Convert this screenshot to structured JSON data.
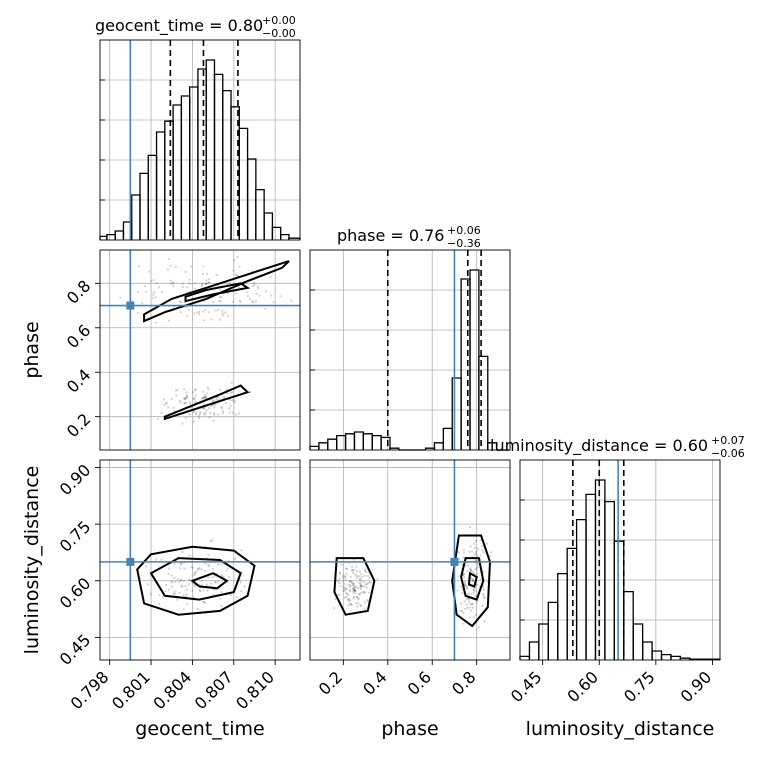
{
  "chart_data": {
    "type": "corner",
    "parameters": [
      "geocent_time",
      "phase",
      "luminosity_distance"
    ],
    "colors": {
      "truth": "#4682b4",
      "histogram": "#000000",
      "quantile": "#000000",
      "grid": "#b0b0b0"
    },
    "truths": {
      "geocent_time": 0.7995,
      "phase": 0.7,
      "luminosity_distance": 0.65
    },
    "titles": [
      {
        "param": "geocent_time",
        "text": "geocent_time = 0.80",
        "plus": "+0.00",
        "minus": "−0.00"
      },
      {
        "param": "phase",
        "text": "phase = 0.76",
        "plus": "+0.06",
        "minus": "−0.36"
      },
      {
        "param": "luminosity_distance",
        "text": "luminosity_distance = 0.60",
        "plus": "+0.07",
        "minus": "−0.06"
      }
    ],
    "axes": {
      "geocent_time": {
        "range": [
          0.7973,
          0.8118
        ],
        "ticks": [
          0.798,
          0.801,
          0.804,
          0.807,
          0.81
        ],
        "tick_labels": [
          "0.798",
          "0.801",
          "0.804",
          "0.807",
          "0.810"
        ],
        "label": "geocent_time"
      },
      "phase": {
        "range": [
          0.05,
          0.95
        ],
        "ticks": [
          0.2,
          0.4,
          0.6,
          0.8
        ],
        "tick_labels": [
          "0.2",
          "0.4",
          "0.6",
          "0.8"
        ],
        "label": "phase"
      },
      "luminosity_distance": {
        "range": [
          0.39,
          0.92
        ],
        "ticks": [
          0.45,
          0.6,
          0.75,
          0.9
        ],
        "tick_labels": [
          "0.45",
          "0.60",
          "0.75",
          "0.90"
        ],
        "label": "luminosity_distance"
      }
    },
    "histograms": {
      "geocent_time": {
        "quantiles": [
          0.8024,
          0.8048,
          0.8073
        ],
        "bins": [
          [
            0.7973,
            0.7978,
            0.02
          ],
          [
            0.7978,
            0.7984,
            0.03
          ],
          [
            0.7984,
            0.799,
            0.05
          ],
          [
            0.799,
            0.7996,
            0.1
          ],
          [
            0.7996,
            0.8002,
            0.25
          ],
          [
            0.8002,
            0.8008,
            0.37
          ],
          [
            0.8008,
            0.8014,
            0.47
          ],
          [
            0.8014,
            0.802,
            0.6
          ],
          [
            0.802,
            0.8026,
            0.66
          ],
          [
            0.8026,
            0.8032,
            0.75
          ],
          [
            0.8032,
            0.8038,
            0.8
          ],
          [
            0.8038,
            0.8044,
            0.85
          ],
          [
            0.8044,
            0.805,
            0.95
          ],
          [
            0.805,
            0.8056,
            1.0
          ],
          [
            0.8056,
            0.8062,
            0.92
          ],
          [
            0.8062,
            0.8068,
            0.83
          ],
          [
            0.8068,
            0.8074,
            0.74
          ],
          [
            0.8074,
            0.808,
            0.62
          ],
          [
            0.808,
            0.8086,
            0.45
          ],
          [
            0.8086,
            0.8092,
            0.28
          ],
          [
            0.8092,
            0.8098,
            0.15
          ],
          [
            0.8098,
            0.8104,
            0.07
          ],
          [
            0.8104,
            0.811,
            0.03
          ],
          [
            0.811,
            0.8118,
            0.01
          ]
        ]
      },
      "phase": {
        "quantiles": [
          0.4,
          0.76,
          0.82
        ],
        "bins": [
          [
            0.05,
            0.09,
            0.02
          ],
          [
            0.09,
            0.13,
            0.04
          ],
          [
            0.13,
            0.17,
            0.06
          ],
          [
            0.17,
            0.21,
            0.08
          ],
          [
            0.21,
            0.25,
            0.09
          ],
          [
            0.25,
            0.29,
            0.1
          ],
          [
            0.29,
            0.33,
            0.09
          ],
          [
            0.33,
            0.37,
            0.08
          ],
          [
            0.37,
            0.41,
            0.07
          ],
          [
            0.41,
            0.45,
            0.01
          ],
          [
            0.45,
            0.49,
            0.0
          ],
          [
            0.49,
            0.53,
            0.0
          ],
          [
            0.53,
            0.57,
            0.0
          ],
          [
            0.57,
            0.61,
            0.01
          ],
          [
            0.61,
            0.65,
            0.04
          ],
          [
            0.65,
            0.69,
            0.12
          ],
          [
            0.69,
            0.73,
            0.4
          ],
          [
            0.73,
            0.77,
            0.95
          ],
          [
            0.77,
            0.81,
            1.0
          ],
          [
            0.81,
            0.85,
            0.52
          ],
          [
            0.85,
            0.89,
            0.04
          ],
          [
            0.89,
            0.95,
            0.0
          ]
        ]
      },
      "luminosity_distance": {
        "quantiles": [
          0.53,
          0.6,
          0.665
        ],
        "bins": [
          [
            0.39,
            0.415,
            0.02
          ],
          [
            0.415,
            0.44,
            0.1
          ],
          [
            0.44,
            0.465,
            0.2
          ],
          [
            0.465,
            0.49,
            0.32
          ],
          [
            0.49,
            0.515,
            0.48
          ],
          [
            0.515,
            0.54,
            0.62
          ],
          [
            0.54,
            0.565,
            0.78
          ],
          [
            0.565,
            0.59,
            0.92
          ],
          [
            0.59,
            0.615,
            1.0
          ],
          [
            0.615,
            0.64,
            0.88
          ],
          [
            0.64,
            0.665,
            0.66
          ],
          [
            0.665,
            0.69,
            0.38
          ],
          [
            0.69,
            0.715,
            0.2
          ],
          [
            0.715,
            0.74,
            0.1
          ],
          [
            0.74,
            0.765,
            0.05
          ],
          [
            0.765,
            0.79,
            0.03
          ],
          [
            0.79,
            0.815,
            0.02
          ],
          [
            0.815,
            0.84,
            0.01
          ],
          [
            0.84,
            0.92,
            0.005
          ]
        ]
      }
    },
    "contours_2d": {
      "phase_vs_geocent_time": [
        {
          "level": "outer",
          "points": [
            [
              0.8005,
              0.66
            ],
            [
              0.8025,
              0.73
            ],
            [
              0.805,
              0.78
            ],
            [
              0.808,
              0.84
            ],
            [
              0.811,
              0.9
            ],
            [
              0.8105,
              0.87
            ],
            [
              0.808,
              0.81
            ],
            [
              0.805,
              0.73
            ],
            [
              0.802,
              0.67
            ],
            [
              0.8005,
              0.63
            ]
          ]
        },
        {
          "level": "inner",
          "points": [
            [
              0.8035,
              0.74
            ],
            [
              0.805,
              0.77
            ],
            [
              0.8075,
              0.8
            ],
            [
              0.808,
              0.78
            ],
            [
              0.8055,
              0.75
            ],
            [
              0.8035,
              0.72
            ]
          ]
        },
        {
          "level": "outer",
          "points": [
            [
              0.802,
              0.2
            ],
            [
              0.804,
              0.25
            ],
            [
              0.806,
              0.3
            ],
            [
              0.8075,
              0.34
            ],
            [
              0.808,
              0.31
            ],
            [
              0.806,
              0.27
            ],
            [
              0.8035,
              0.22
            ],
            [
              0.802,
              0.19
            ]
          ]
        }
      ],
      "luminosity_distance_vs_geocent_time": [
        {
          "level": "outer",
          "points": [
            [
              0.8,
              0.63
            ],
            [
              0.801,
              0.67
            ],
            [
              0.804,
              0.69
            ],
            [
              0.807,
              0.68
            ],
            [
              0.8085,
              0.64
            ],
            [
              0.808,
              0.56
            ],
            [
              0.806,
              0.52
            ],
            [
              0.803,
              0.51
            ],
            [
              0.8005,
              0.54
            ]
          ]
        },
        {
          "level": "mid",
          "points": [
            [
              0.801,
              0.62
            ],
            [
              0.803,
              0.66
            ],
            [
              0.806,
              0.655
            ],
            [
              0.8075,
              0.62
            ],
            [
              0.807,
              0.57
            ],
            [
              0.8045,
              0.55
            ],
            [
              0.802,
              0.56
            ]
          ]
        },
        {
          "level": "inner",
          "points": [
            [
              0.804,
              0.6
            ],
            [
              0.8055,
              0.62
            ],
            [
              0.8065,
              0.6
            ],
            [
              0.8058,
              0.58
            ],
            [
              0.8045,
              0.585
            ]
          ]
        }
      ],
      "luminosity_distance_vs_phase": [
        {
          "level": "outer",
          "points": [
            [
              0.17,
              0.66
            ],
            [
              0.29,
              0.66
            ],
            [
              0.34,
              0.6
            ],
            [
              0.31,
              0.52
            ],
            [
              0.21,
              0.51
            ],
            [
              0.16,
              0.57
            ]
          ]
        },
        {
          "level": "outer",
          "points": [
            [
              0.72,
              0.72
            ],
            [
              0.82,
              0.72
            ],
            [
              0.86,
              0.65
            ],
            [
              0.85,
              0.53
            ],
            [
              0.78,
              0.48
            ],
            [
              0.71,
              0.51
            ],
            [
              0.69,
              0.6
            ]
          ]
        },
        {
          "level": "mid",
          "points": [
            [
              0.75,
              0.66
            ],
            [
              0.81,
              0.66
            ],
            [
              0.83,
              0.6
            ],
            [
              0.8,
              0.55
            ],
            [
              0.75,
              0.56
            ],
            [
              0.73,
              0.61
            ]
          ]
        },
        {
          "level": "inner",
          "points": [
            [
              0.77,
              0.62
            ],
            [
              0.8,
              0.61
            ],
            [
              0.79,
              0.585
            ],
            [
              0.765,
              0.59
            ]
          ]
        }
      ]
    },
    "grid": true
  }
}
